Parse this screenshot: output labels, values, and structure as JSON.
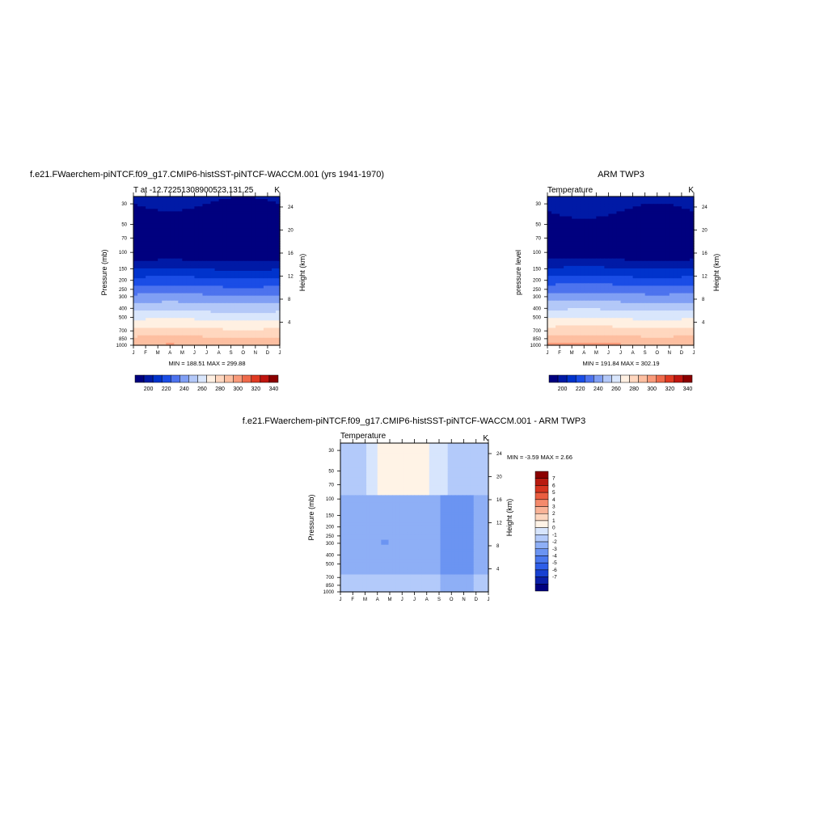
{
  "figure_titles": {
    "top_left": "f.e21.FWaerchem-piNTCF.f09_g17.CMIP6-histSST-piNTCF-WACCM.001 (yrs 1941-1970)",
    "top_right": "ARM TWP3",
    "bottom": "f.e21.FWaerchem-piNTCF.f09_g17.CMIP6-histSST-piNTCF-WACCM.001 - ARM TWP3"
  },
  "colors": {
    "abs_palette": [
      "#00007f",
      "#001aa6",
      "#0033cc",
      "#1a4de6",
      "#4d73ee",
      "#809ff4",
      "#b3c8f8",
      "#d9e6fc",
      "#fff0e2",
      "#ffd7bf",
      "#fdbfa1",
      "#f99a7a",
      "#ef6a4b",
      "#e03a22",
      "#c0150f",
      "#8b0000"
    ],
    "diff_palette": [
      "#00007f",
      "#0a1fa8",
      "#1740d1",
      "#2e5ee8",
      "#4a78ee",
      "#6b94f2",
      "#8eaff6",
      "#b3cafa",
      "#d7e5fd",
      "#fff3e6",
      "#fcd6bf",
      "#f9b397",
      "#f48a6c",
      "#ea5d40",
      "#d6341f",
      "#b81a0f",
      "#8b0000"
    ]
  },
  "chart_data": [
    {
      "type": "heatmap",
      "title": "f.e21.FWaerchem-piNTCF.f09_g17.CMIP6-histSST-piNTCF-WACCM.001 (yrs 1941-1970)",
      "subtitle_left": "T at -12.72251308900523,131.25",
      "subtitle_right": "K",
      "ylabel": "Pressure (mb)",
      "ylabel_right": "Height (km)",
      "x_ticklabels": [
        "J",
        "F",
        "M",
        "A",
        "M",
        "J",
        "J",
        "A",
        "S",
        "O",
        "N",
        "D",
        "J"
      ],
      "y_ticks": [
        30,
        50,
        70,
        100,
        150,
        200,
        250,
        300,
        400,
        500,
        700,
        850,
        1000
      ],
      "y_log": true,
      "ylim": [
        1000,
        25
      ],
      "height_ticks": [
        24,
        20,
        16,
        12,
        8,
        4
      ],
      "minmax": "MIN = 188.51 MAX = 299.88",
      "colorbar": {
        "labels": [
          "200",
          "220",
          "240",
          "260",
          "280",
          "300",
          "320",
          "340"
        ],
        "levels": [
          190,
          200,
          210,
          220,
          230,
          240,
          250,
          260,
          270,
          280,
          290,
          300,
          310,
          320,
          330,
          340
        ]
      },
      "min": 188.51,
      "max": 299.88
    },
    {
      "type": "heatmap",
      "title": "ARM TWP3",
      "subtitle_left": "Temperature",
      "subtitle_right": "K",
      "ylabel": "pressure level",
      "ylabel_right": "Height (km)",
      "x_ticklabels": [
        "J",
        "F",
        "M",
        "A",
        "M",
        "J",
        "J",
        "A",
        "S",
        "O",
        "N",
        "D",
        "J"
      ],
      "y_ticks": [
        30,
        50,
        70,
        100,
        150,
        200,
        250,
        300,
        400,
        500,
        700,
        850,
        1000
      ],
      "y_log": true,
      "ylim": [
        1000,
        25
      ],
      "height_ticks": [
        24,
        20,
        16,
        12,
        8,
        4
      ],
      "minmax": "MIN = 191.84 MAX = 302.19",
      "colorbar": {
        "labels": [
          "200",
          "220",
          "240",
          "260",
          "280",
          "300",
          "320",
          "340"
        ],
        "levels": [
          190,
          200,
          210,
          220,
          230,
          240,
          250,
          260,
          270,
          280,
          290,
          300,
          310,
          320,
          330,
          340
        ]
      },
      "min": 191.84,
      "max": 302.19
    },
    {
      "type": "heatmap",
      "title": "f.e21.FWaerchem-piNTCF.f09_g17.CMIP6-histSST-piNTCF-WACCM.001 - ARM TWP3",
      "subtitle_left": "Temperature",
      "subtitle_right": "K",
      "ylabel": "Pressure (mb)",
      "ylabel_right": "Height (km)",
      "x_ticklabels": [
        "J",
        "F",
        "M",
        "A",
        "M",
        "J",
        "J",
        "A",
        "S",
        "O",
        "N",
        "D",
        "J"
      ],
      "y_ticks": [
        30,
        50,
        70,
        100,
        150,
        200,
        250,
        300,
        400,
        500,
        700,
        850,
        1000
      ],
      "y_log": true,
      "ylim": [
        1000,
        25
      ],
      "height_ticks": [
        24,
        20,
        16,
        12,
        8,
        4
      ],
      "minmax": "MIN =  -3.59 MAX =   2.66",
      "colorbar": {
        "labels": [
          "7",
          "6",
          "5",
          "4",
          "3",
          "2",
          "1",
          "0",
          "-1",
          "-2",
          "-3",
          "-4",
          "-5",
          "-6",
          "-7"
        ]
      },
      "min": -3.59,
      "max": 2.66
    }
  ]
}
